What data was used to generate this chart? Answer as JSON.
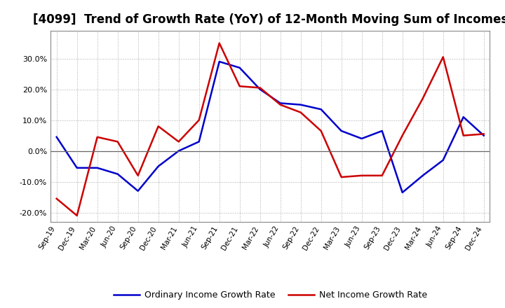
{
  "title": "[4099]  Trend of Growth Rate (YoY) of 12-Month Moving Sum of Incomes",
  "x_labels": [
    "Sep-19",
    "Dec-19",
    "Mar-20",
    "Jun-20",
    "Sep-20",
    "Dec-20",
    "Mar-21",
    "Jun-21",
    "Sep-21",
    "Dec-21",
    "Mar-22",
    "Jun-22",
    "Sep-22",
    "Dec-22",
    "Mar-23",
    "Jun-23",
    "Sep-23",
    "Dec-23",
    "Mar-24",
    "Jun-24",
    "Sep-24",
    "Dec-24"
  ],
  "ordinary_income": [
    4.5,
    -5.5,
    -5.5,
    -7.5,
    -13.0,
    -5.0,
    0.0,
    3.0,
    29.0,
    27.0,
    20.0,
    15.5,
    15.0,
    13.5,
    6.5,
    4.0,
    6.5,
    -13.5,
    -8.0,
    -3.0,
    11.0,
    5.0
  ],
  "net_income": [
    -15.5,
    -21.0,
    4.5,
    3.0,
    -8.0,
    8.0,
    3.0,
    10.0,
    35.0,
    21.0,
    20.5,
    15.0,
    12.5,
    6.5,
    -8.5,
    -8.0,
    -8.0,
    5.0,
    17.0,
    30.5,
    5.0,
    5.5
  ],
  "ordinary_color": "#0000cc",
  "net_color": "#cc0000",
  "ylim": [
    -23,
    39
  ],
  "yticks": [
    -20,
    -10,
    0,
    10,
    20,
    30
  ],
  "background_color": "#ffffff",
  "grid_color": "#aaaaaa",
  "legend_ordinary": "Ordinary Income Growth Rate",
  "legend_net": "Net Income Growth Rate",
  "title_fontsize": 12,
  "linewidth": 1.8
}
